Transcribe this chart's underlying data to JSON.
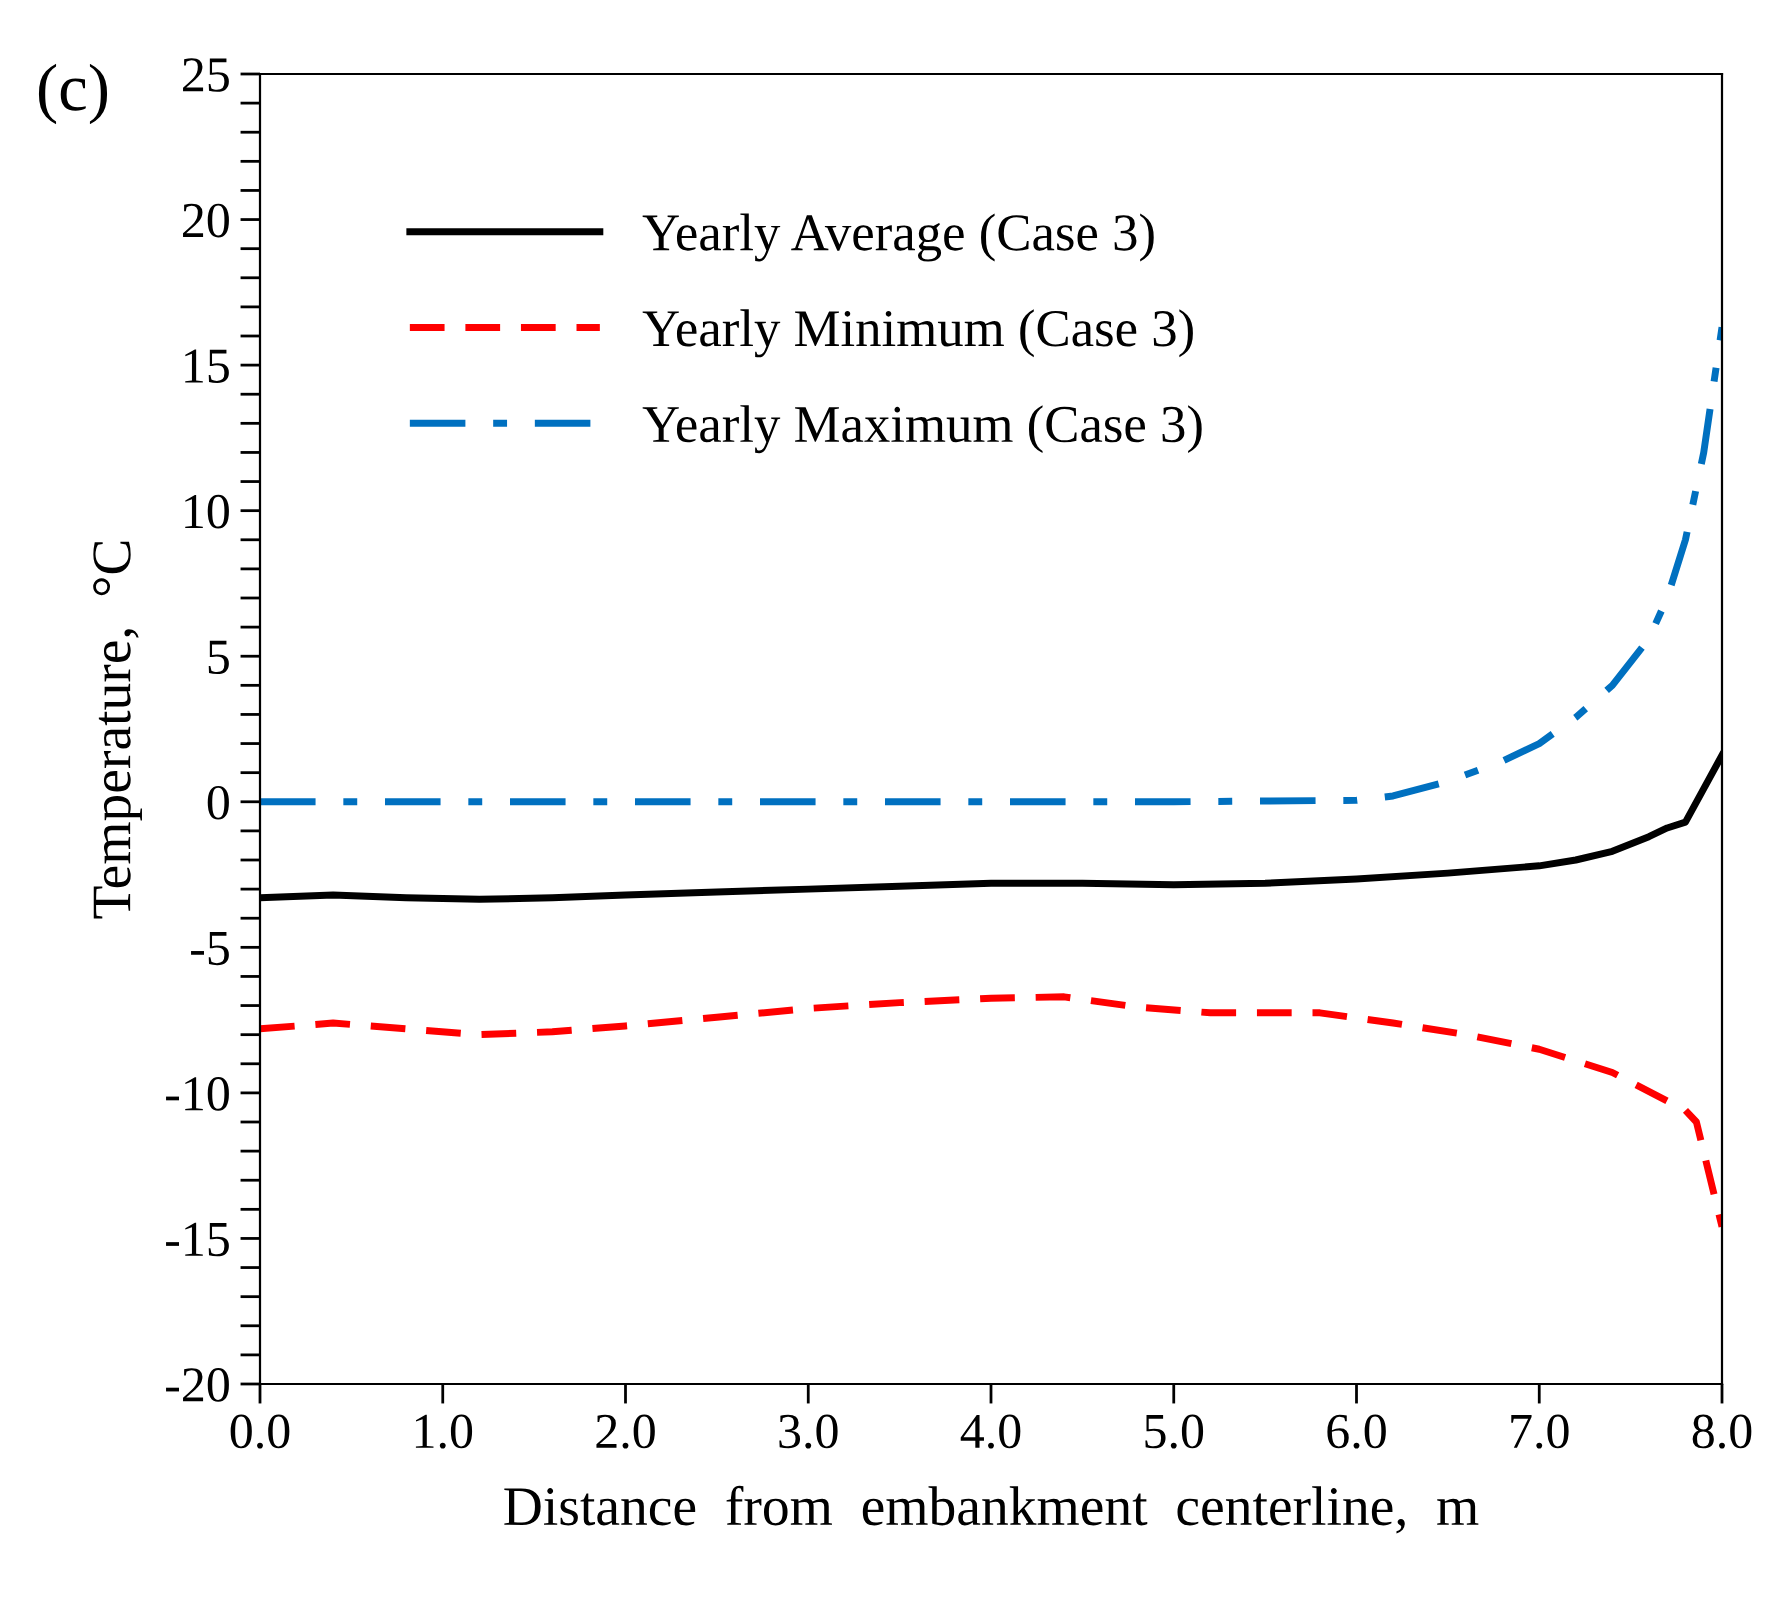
{
  "chart_data": {
    "type": "line",
    "xlabel": "Distance  from  embankment  centerline,  m",
    "ylabel": "Temperature,  °C",
    "annotations": [
      "(c)"
    ],
    "xlim": [
      0,
      8
    ],
    "xticks": [
      {
        "value": 0,
        "label": "0.0"
      },
      {
        "value": 1,
        "label": "1.0"
      },
      {
        "value": 2,
        "label": "2.0"
      },
      {
        "value": 3,
        "label": "3.0"
      },
      {
        "value": 4,
        "label": "4.0"
      },
      {
        "value": 5,
        "label": "5.0"
      },
      {
        "value": 6,
        "label": "6.0"
      },
      {
        "value": 7,
        "label": "7.0"
      },
      {
        "value": 8,
        "label": "8.0"
      }
    ],
    "ylim": [
      -20,
      25
    ],
    "yticks": [
      -20,
      -15,
      -10,
      -5,
      0,
      5,
      10,
      15,
      20,
      25,
      {
        "value": -19,
        "label": null
      },
      {
        "value": -18,
        "label": null
      },
      {
        "value": -17,
        "label": null
      },
      {
        "value": -16,
        "label": null
      },
      {
        "value": -14,
        "label": null
      },
      {
        "value": -13,
        "label": null
      },
      {
        "value": -12,
        "label": null
      },
      {
        "value": -11,
        "label": null
      },
      {
        "value": -9,
        "label": null
      },
      {
        "value": -8,
        "label": null
      },
      {
        "value": -7,
        "label": null
      },
      {
        "value": -6,
        "label": null
      },
      {
        "value": -4,
        "label": null
      },
      {
        "value": -3,
        "label": null
      },
      {
        "value": -2,
        "label": null
      },
      {
        "value": -1,
        "label": null
      },
      {
        "value": 1,
        "label": null
      },
      {
        "value": 2,
        "label": null
      },
      {
        "value": 3,
        "label": null
      },
      {
        "value": 4,
        "label": null
      },
      {
        "value": 6,
        "label": null
      },
      {
        "value": 7,
        "label": null
      },
      {
        "value": 8,
        "label": null
      },
      {
        "value": 9,
        "label": null
      },
      {
        "value": 11,
        "label": null
      },
      {
        "value": 12,
        "label": null
      },
      {
        "value": 13,
        "label": null
      },
      {
        "value": 14,
        "label": null
      },
      {
        "value": 16,
        "label": null
      },
      {
        "value": 17,
        "label": null
      },
      {
        "value": 18,
        "label": null
      },
      {
        "value": 19,
        "label": null
      },
      {
        "value": 21,
        "label": null
      },
      {
        "value": 22,
        "label": null
      },
      {
        "value": 23,
        "label": null
      },
      {
        "value": 24,
        "label": null
      }
    ],
    "grid": false,
    "legend": "top left",
    "marker": "none",
    "series": [
      {
        "name": "Yearly Average (Case 3)",
        "color": "#000000",
        "line_style": "solid",
        "x": [
          0,
          0.4,
          0.8,
          1.2,
          1.6,
          2,
          2.5,
          3,
          3.5,
          4,
          4.5,
          5,
          5.5,
          6,
          6.5,
          7,
          7.2,
          7.4,
          7.6,
          7.7,
          7.8,
          8
        ],
        "values": [
          -3.3,
          -3.2,
          -3.3,
          -3.35,
          -3.3,
          -3.2,
          -3.1,
          -3.0,
          -2.9,
          -2.8,
          -2.8,
          -2.85,
          -2.8,
          -2.65,
          -2.45,
          -2.2,
          -2.0,
          -1.7,
          -1.2,
          -0.9,
          -0.7,
          1.6
        ]
      },
      {
        "name": "Yearly Minimum (Case 3)",
        "color": "#ff0000",
        "line_style": "dashed",
        "x": [
          0,
          0.4,
          0.8,
          1.2,
          1.6,
          2,
          2.5,
          3,
          3.5,
          4,
          4.4,
          4.8,
          5.2,
          5.8,
          6.2,
          6.6,
          7,
          7.4,
          7.8,
          7.86,
          8
        ],
        "values": [
          -7.8,
          -7.6,
          -7.8,
          -8.0,
          -7.9,
          -7.7,
          -7.4,
          -7.1,
          -6.9,
          -6.75,
          -6.7,
          -7.05,
          -7.25,
          -7.25,
          -7.6,
          -8.0,
          -8.5,
          -9.3,
          -10.6,
          -11.0,
          -14.6
        ]
      },
      {
        "name": "Yearly Maximum (Case 3)",
        "color": "#0070c0",
        "line_style": "dashdot",
        "x": [
          0,
          1,
          2,
          3,
          4,
          5,
          6,
          6.2,
          6.5,
          6.8,
          7,
          7.2,
          7.4,
          7.6,
          7.7,
          7.8,
          7.9,
          8
        ],
        "values": [
          0,
          0,
          0,
          0,
          0,
          0,
          0.05,
          0.2,
          0.7,
          1.4,
          2.0,
          2.9,
          4.0,
          5.6,
          7.0,
          9.0,
          12.0,
          16.3
        ]
      }
    ]
  }
}
